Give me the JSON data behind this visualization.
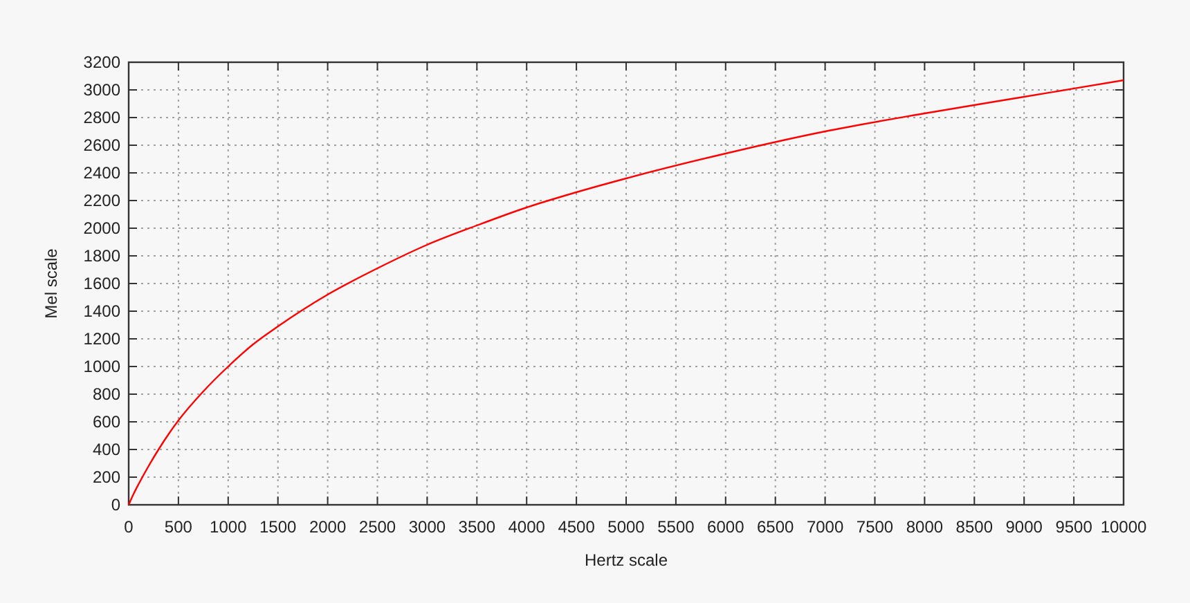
{
  "chart_data": {
    "type": "line",
    "xlabel": "Hertz scale",
    "ylabel": "Mel scale",
    "x": [
      0,
      50,
      100,
      200,
      300,
      400,
      500,
      750,
      1000,
      1250,
      1500,
      2000,
      2500,
      3000,
      3500,
      4000,
      4500,
      5000,
      6000,
      7000,
      8000,
      9000,
      10000
    ],
    "series": [
      {
        "color": "#ff0000",
        "values": [
          0,
          80,
          150,
          280,
          400,
          510,
          610,
          820,
          1000,
          1160,
          1290,
          1520,
          1710,
          1880,
          2020,
          2150,
          2260,
          2360,
          2540,
          2700,
          2830,
          2950,
          3070
        ]
      }
    ],
    "xlim": [
      0,
      10000
    ],
    "ylim": [
      0,
      3200
    ],
    "xticks": [
      0,
      500,
      1000,
      1500,
      2000,
      2500,
      3000,
      3500,
      4000,
      4500,
      5000,
      5500,
      6000,
      6500,
      7000,
      7500,
      8000,
      8500,
      9000,
      9500,
      10000
    ],
    "yticks": [
      0,
      200,
      400,
      600,
      800,
      1000,
      1200,
      1400,
      1600,
      1800,
      2000,
      2200,
      2400,
      2600,
      2800,
      3000,
      3200
    ],
    "grid": true,
    "marker": "none",
    "line_style": "solid"
  }
}
